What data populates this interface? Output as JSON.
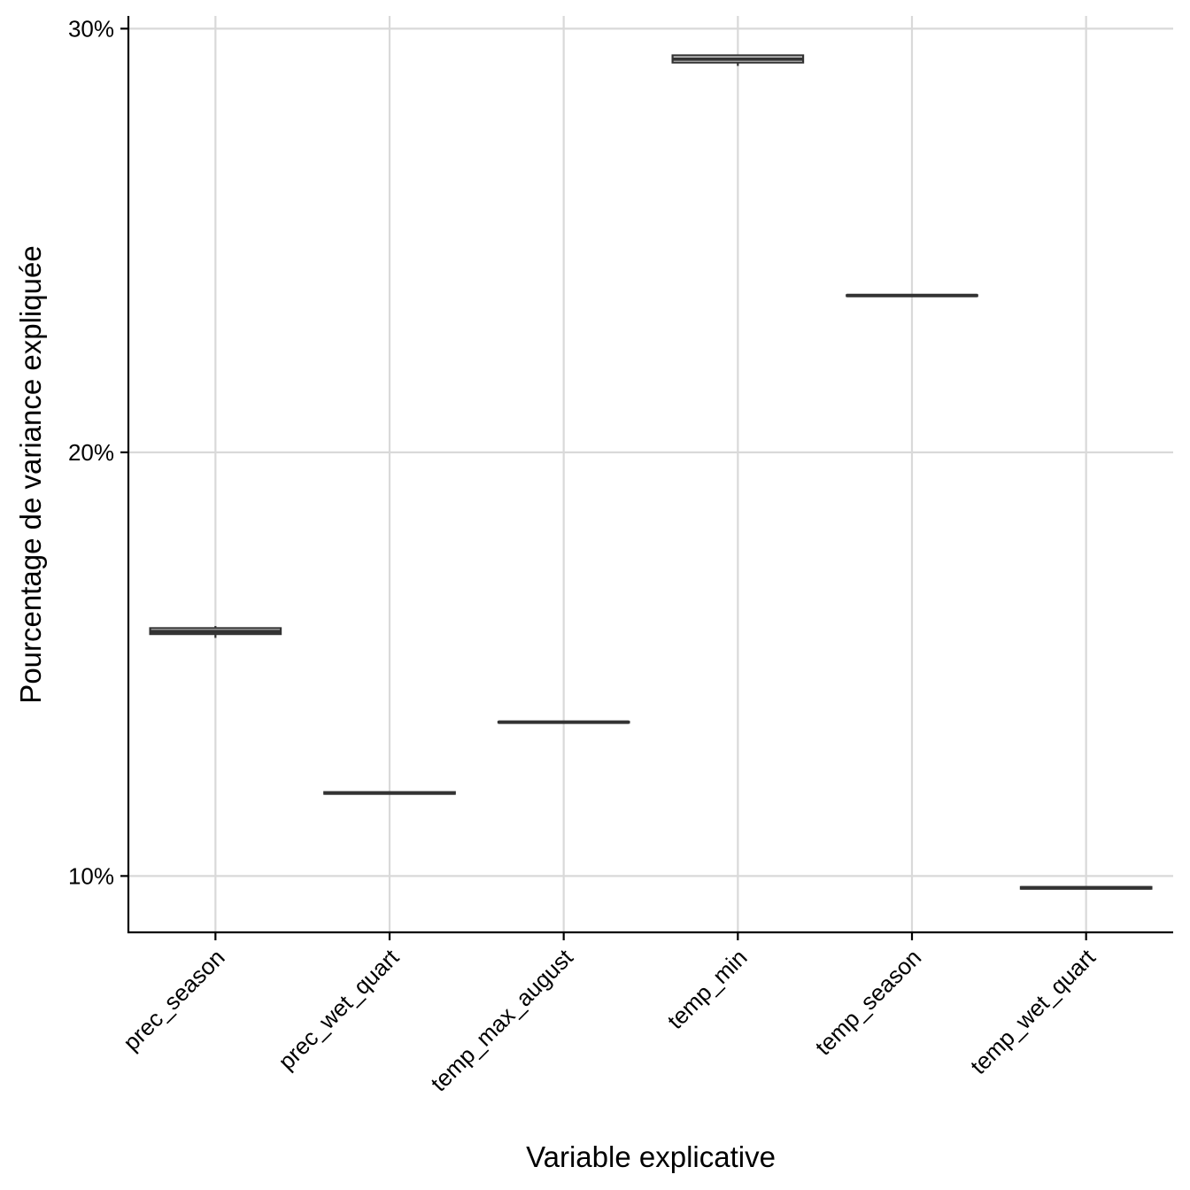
{
  "chart_data": {
    "type": "boxplot",
    "title": "",
    "xlabel": "Variable explicative",
    "ylabel": "Pourcentage de variance expliquée",
    "ylim": [
      8.67,
      30.3
    ],
    "y_ticks": [
      {
        "value": 10,
        "label": "10%"
      },
      {
        "value": 20,
        "label": "20%"
      },
      {
        "value": 30,
        "label": "30%"
      }
    ],
    "grid": true,
    "legend": "none",
    "colors": {
      "box": "#333333",
      "grid": "#d9d9d9",
      "axis": "#000000"
    },
    "categories": [
      "prec_season",
      "prec_wet_quart",
      "temp_max_august",
      "temp_min",
      "temp_season",
      "temp_wet_quart"
    ],
    "boxes": [
      {
        "min": 15.62,
        "q1": 15.71,
        "median": 15.77,
        "q3": 15.85,
        "max": 15.9
      },
      {
        "min": 11.94,
        "q1": 11.94,
        "median": 11.96,
        "q3": 11.98,
        "max": 12.0
      },
      {
        "min": 13.62,
        "q1": 13.62,
        "median": 13.63,
        "q3": 13.64,
        "max": 13.64
      },
      {
        "min": 29.12,
        "q1": 29.2,
        "median": 29.28,
        "q3": 29.37,
        "max": 29.37
      },
      {
        "min": 23.69,
        "q1": 23.69,
        "median": 23.7,
        "q3": 23.71,
        "max": 23.71
      },
      {
        "min": 9.7,
        "q1": 9.7,
        "median": 9.72,
        "q3": 9.74,
        "max": 9.74
      }
    ]
  }
}
